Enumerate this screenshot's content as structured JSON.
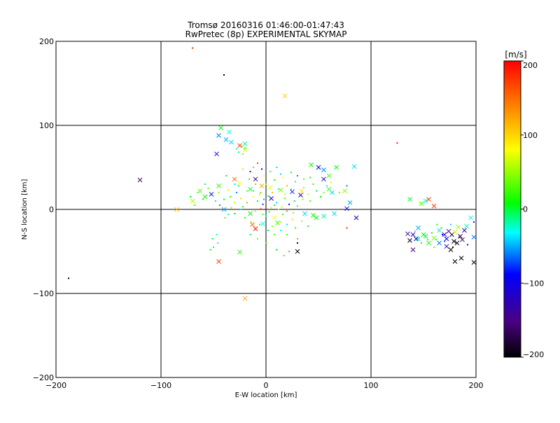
{
  "chart_data": {
    "type": "scatter",
    "title": "Tromsø 20160316 01:46:00-01:47:43",
    "subtitle": "RwPretec (8p) EXPERIMENTAL SKYMAP",
    "xlabel": "E-W location [km]",
    "ylabel": "N-S location [km]",
    "xlim": [
      -200,
      200
    ],
    "ylim": [
      -200,
      200
    ],
    "x_ticks": [
      -200,
      -100,
      0,
      100,
      200
    ],
    "y_ticks": [
      -200,
      -100,
      0,
      100,
      200
    ],
    "grid": true,
    "colorbar": {
      "label": "[m/s]",
      "range": [
        -200,
        200
      ],
      "ticks": [
        200,
        100,
        0,
        -100,
        -200
      ],
      "colors": [
        "#000000",
        "#4b0082",
        "#0000ff",
        "#00ffff",
        "#00ff00",
        "#ffff00",
        "#ff8000",
        "#ff0000"
      ]
    },
    "crosses": [
      [
        -43,
        97,
        10
      ],
      [
        -35,
        92,
        -30
      ],
      [
        -45,
        88,
        -60
      ],
      [
        -38,
        83,
        -50
      ],
      [
        -33,
        80,
        -40
      ],
      [
        -20,
        78,
        -10
      ],
      [
        -25,
        76,
        180
      ],
      [
        -20,
        71,
        60
      ],
      [
        -47,
        66,
        -110
      ],
      [
        -58,
        15,
        10
      ],
      [
        -52,
        18,
        -80
      ],
      [
        -63,
        22,
        40
      ],
      [
        -45,
        28,
        20
      ],
      [
        -30,
        36,
        150
      ],
      [
        -25,
        31,
        80
      ],
      [
        -15,
        24,
        0
      ],
      [
        -10,
        36,
        -150
      ],
      [
        -4,
        28,
        120
      ],
      [
        4,
        26,
        70
      ],
      [
        14,
        23,
        40
      ],
      [
        25,
        21,
        -80
      ],
      [
        34,
        22,
        90
      ],
      [
        43,
        53,
        10
      ],
      [
        50,
        50,
        -90
      ],
      [
        55,
        47,
        -60
      ],
      [
        60,
        40,
        30
      ],
      [
        67,
        50,
        10
      ],
      [
        55,
        36,
        -120
      ],
      [
        60,
        24,
        20
      ],
      [
        75,
        22,
        50
      ],
      [
        84,
        51,
        -40
      ],
      [
        80,
        8,
        -50
      ],
      [
        77,
        1,
        -100
      ],
      [
        63,
        20,
        -40
      ],
      [
        -120,
        35,
        -160
      ],
      [
        -70,
        10,
        60
      ],
      [
        -85,
        0,
        110
      ],
      [
        -40,
        0,
        -50
      ],
      [
        -15,
        -5,
        10
      ],
      [
        -13,
        -18,
        150
      ],
      [
        -10,
        -23,
        190
      ],
      [
        -3,
        -17,
        -30
      ],
      [
        8,
        -10,
        80
      ],
      [
        11,
        -16,
        20
      ],
      [
        5,
        13,
        -110
      ],
      [
        33,
        17,
        -120
      ],
      [
        37,
        -5,
        -40
      ],
      [
        45,
        -7,
        10
      ],
      [
        48,
        -10,
        5
      ],
      [
        55,
        -8,
        -20
      ],
      [
        65,
        -5,
        -40
      ],
      [
        86,
        -10,
        -130
      ],
      [
        30,
        -50,
        -200
      ],
      [
        -45,
        -62,
        170
      ],
      [
        -25,
        -51,
        20
      ],
      [
        -20,
        -106,
        120
      ],
      [
        18,
        135,
        100
      ],
      [
        137,
        12,
        0
      ],
      [
        145,
        -22,
        -50
      ],
      [
        140,
        -30,
        -130
      ],
      [
        137,
        -37,
        -200
      ],
      [
        135,
        -29,
        -140
      ],
      [
        140,
        -48,
        -150
      ],
      [
        148,
        7,
        30
      ],
      [
        152,
        10,
        -30
      ],
      [
        155,
        12,
        170
      ],
      [
        160,
        4,
        180
      ],
      [
        165,
        -25,
        -20
      ],
      [
        170,
        -30,
        -120
      ],
      [
        172,
        -35,
        -90
      ],
      [
        174,
        -26,
        -150
      ],
      [
        177,
        -30,
        -180
      ],
      [
        179,
        -38,
        -200
      ],
      [
        176,
        -48,
        -200
      ],
      [
        180,
        -62,
        -200
      ],
      [
        182,
        -40,
        -190
      ],
      [
        185,
        -32,
        -180
      ],
      [
        187,
        -36,
        -170
      ],
      [
        189,
        -25,
        -140
      ],
      [
        191,
        -20,
        -20
      ],
      [
        186,
        -58,
        -200
      ],
      [
        198,
        -63,
        -200
      ],
      [
        180,
        -27,
        60
      ],
      [
        183,
        -21,
        50
      ],
      [
        195,
        -10,
        -30
      ],
      [
        198,
        -33,
        -60
      ],
      [
        150,
        -30,
        10
      ],
      [
        145,
        -35,
        -10
      ],
      [
        165,
        -40,
        -60
      ],
      [
        172,
        -44,
        -130
      ],
      [
        160,
        -34,
        40
      ],
      [
        155,
        -40,
        20
      ],
      [
        143,
        -35,
        -100
      ],
      [
        152,
        -32,
        0
      ]
    ],
    "dots": [
      [
        -50,
        -45,
        -10
      ],
      [
        -46,
        -40,
        -20
      ],
      [
        -51,
        -35,
        0
      ],
      [
        -47,
        -30,
        -30
      ],
      [
        -53,
        -48,
        10
      ],
      [
        -39,
        -10,
        30
      ],
      [
        -36,
        -6,
        -20
      ],
      [
        -30,
        8,
        60
      ],
      [
        -24,
        13,
        100
      ],
      [
        -22,
        3,
        0
      ],
      [
        -28,
        20,
        -60
      ],
      [
        -18,
        22,
        40
      ],
      [
        -12,
        15,
        80
      ],
      [
        -8,
        10,
        10
      ],
      [
        -5,
        1,
        150
      ],
      [
        -3,
        6,
        -80
      ],
      [
        2,
        16,
        0
      ],
      [
        6,
        20,
        110
      ],
      [
        10,
        8,
        -40
      ],
      [
        15,
        3,
        60
      ],
      [
        18,
        13,
        20
      ],
      [
        22,
        6,
        -100
      ],
      [
        27,
        10,
        0
      ],
      [
        30,
        4,
        -10
      ],
      [
        35,
        12,
        40
      ],
      [
        40,
        18,
        70
      ],
      [
        -3,
        -6,
        20
      ],
      [
        3,
        -3,
        10
      ],
      [
        6,
        -20,
        50
      ],
      [
        14,
        -25,
        -30
      ],
      [
        20,
        -30,
        30
      ],
      [
        25,
        -12,
        100
      ],
      [
        30,
        -35,
        130
      ],
      [
        -65,
        20,
        -20
      ],
      [
        -60,
        12,
        20
      ],
      [
        -68,
        5,
        30
      ],
      [
        -72,
        15,
        10
      ],
      [
        -10,
        30,
        30
      ],
      [
        -2,
        40,
        80
      ],
      [
        8,
        35,
        20
      ],
      [
        14,
        42,
        -40
      ],
      [
        20,
        28,
        120
      ],
      [
        28,
        33,
        -20
      ],
      [
        36,
        26,
        50
      ],
      [
        45,
        30,
        20
      ],
      [
        52,
        15,
        10
      ],
      [
        58,
        28,
        -30
      ],
      [
        62,
        32,
        60
      ],
      [
        70,
        20,
        40
      ],
      [
        77,
        28,
        -60
      ],
      [
        -15,
        45,
        -150
      ],
      [
        -8,
        55,
        170
      ],
      [
        -40,
        160,
        -200
      ],
      [
        -70,
        192,
        180
      ],
      [
        -188,
        -82,
        -200
      ],
      [
        125,
        79,
        190
      ],
      [
        77,
        -22,
        180
      ],
      [
        30,
        -40,
        -200
      ],
      [
        -23,
        75,
        30
      ],
      [
        -26,
        68,
        -10
      ],
      [
        -20,
        73,
        20
      ],
      [
        -28,
        72,
        -30
      ],
      [
        -22,
        66,
        40
      ],
      [
        162,
        -36,
        -10
      ],
      [
        158,
        -28,
        10
      ],
      [
        170,
        -38,
        -60
      ],
      [
        178,
        -45,
        -200
      ],
      [
        184,
        -33,
        -150
      ],
      [
        167,
        -22,
        20
      ],
      [
        154,
        -36,
        -20
      ],
      [
        148,
        -40,
        0
      ],
      [
        142,
        -26,
        -30
      ],
      [
        163,
        -18,
        10
      ],
      [
        176,
        -18,
        -40
      ],
      [
        192,
        -42,
        -100
      ],
      [
        198,
        -15,
        -80
      ],
      [
        160,
        -45,
        40
      ],
      [
        168,
        -30,
        -90
      ],
      [
        -30,
        -5,
        10
      ],
      [
        -33,
        2,
        40
      ],
      [
        -26,
        28,
        -40
      ],
      [
        -16,
        36,
        20
      ],
      [
        -36,
        23,
        90
      ],
      [
        -40,
        12,
        10
      ],
      [
        -55,
        25,
        30
      ],
      [
        -58,
        30,
        -10
      ],
      [
        -44,
        5,
        -60
      ],
      [
        -5,
        20,
        30
      ],
      [
        0,
        30,
        50
      ],
      [
        12,
        24,
        -30
      ],
      [
        18,
        18,
        70
      ],
      [
        24,
        24,
        0
      ],
      [
        42,
        10,
        30
      ],
      [
        48,
        22,
        -10
      ],
      [
        55,
        20,
        40
      ],
      [
        -20,
        -10,
        20
      ],
      [
        -15,
        -30,
        0
      ],
      [
        -8,
        -35,
        40
      ],
      [
        0,
        -40,
        20
      ],
      [
        10,
        -48,
        10
      ],
      [
        17,
        -55,
        30
      ],
      [
        22,
        -50,
        -40
      ],
      [
        -10,
        -2,
        60
      ],
      [
        0,
        -8,
        -30
      ],
      [
        5,
        2,
        90
      ],
      [
        8,
        5,
        -10
      ],
      [
        12,
        0,
        60
      ],
      [
        16,
        -6,
        20
      ],
      [
        20,
        -2,
        140
      ],
      [
        26,
        -4,
        40
      ],
      [
        -2,
        12,
        -50
      ],
      [
        -6,
        18,
        100
      ],
      [
        -12,
        22,
        -20
      ],
      [
        -18,
        8,
        130
      ],
      [
        -24,
        0,
        -40
      ],
      [
        -14,
        -15,
        50
      ],
      [
        -6,
        -18,
        20
      ],
      [
        2,
        -25,
        0
      ],
      [
        8,
        -30,
        30
      ],
      [
        14,
        -15,
        60
      ],
      [
        20,
        -18,
        -40
      ],
      [
        28,
        -22,
        20
      ],
      [
        34,
        -14,
        50
      ],
      [
        40,
        -20,
        0
      ],
      [
        -34,
        15,
        20
      ],
      [
        -30,
        30,
        -30
      ],
      [
        -38,
        40,
        0
      ],
      [
        -22,
        48,
        60
      ],
      [
        -12,
        50,
        30
      ],
      [
        -4,
        48,
        -90
      ],
      [
        4,
        45,
        40
      ],
      [
        10,
        50,
        -30
      ],
      [
        16,
        38,
        80
      ],
      [
        24,
        44,
        10
      ],
      [
        30,
        40,
        -60
      ],
      [
        36,
        36,
        30
      ],
      [
        42,
        38,
        20
      ],
      [
        -45,
        20,
        50
      ],
      [
        -48,
        10,
        -10
      ]
    ]
  }
}
